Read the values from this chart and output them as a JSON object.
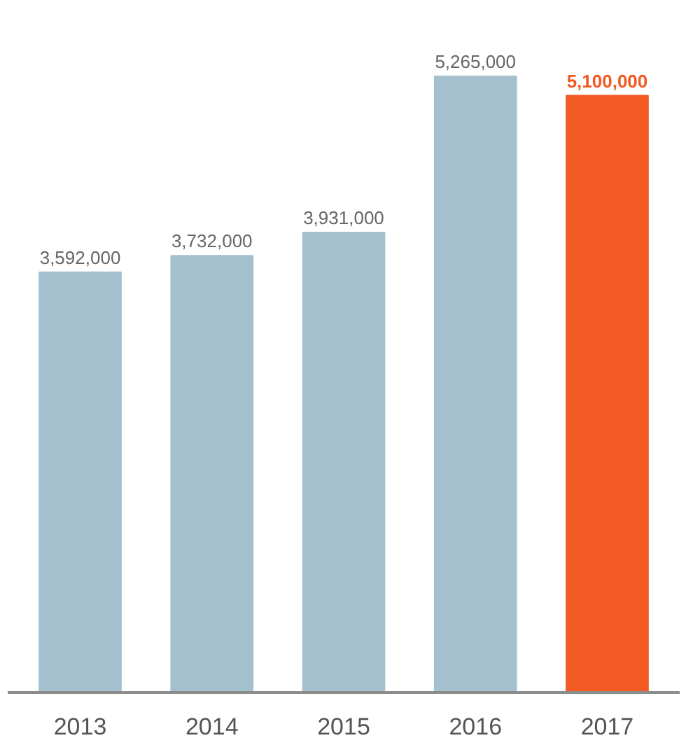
{
  "chart_data": {
    "type": "bar",
    "categories": [
      "2013",
      "2014",
      "2015",
      "2016",
      "2017"
    ],
    "values": [
      3592000,
      3732000,
      3931000,
      5265000,
      5100000
    ],
    "colors": [
      "#a4c0cf",
      "#a4c0cf",
      "#a4c0cf",
      "#a4c0cf",
      "#f15a22"
    ],
    "value_labels": [
      "3,592,000",
      "3,732,000",
      "3,931,000",
      "5,265,000",
      "5,100,000"
    ],
    "grid": false
  }
}
